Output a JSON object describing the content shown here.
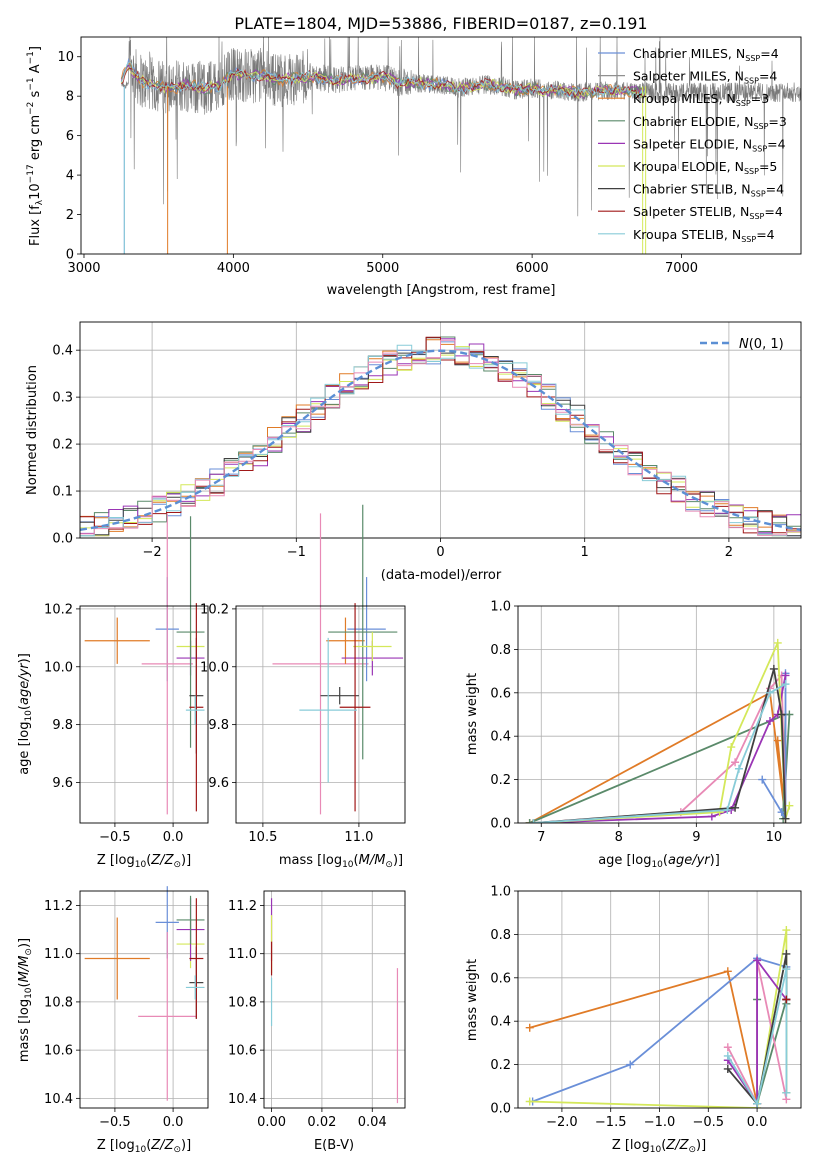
{
  "title": "PLATE=1804, MJD=53886, FIBERID=0187, z=0.191",
  "colors": {
    "cm": "#6a8fd8",
    "sm": "#909090",
    "km": "#e07b27",
    "ce": "#5a8a6a",
    "se": "#9a35b5",
    "ke": "#d4e85a",
    "cs": "#404040",
    "ss": "#a01818",
    "ks": "#88ccd8",
    "sal": "#e88ab6",
    "chab": "#e07b27",
    "gauss": "#5b8fd4"
  },
  "chart_data": [
    {
      "type": "line",
      "title": "PLATE=1804, MJD=53886, FIBERID=0187, z=0.191",
      "xlabel": "wavelength [Angstrom, rest frame]",
      "ylabel": "Flux [fλ10^-17 erg cm^-2 s^-1 A^-1]",
      "xlim": [
        2980,
        7800
      ],
      "ylim": [
        0,
        11
      ],
      "xticks": [
        3000,
        4000,
        5000,
        6000,
        7000
      ],
      "yticks": [
        0,
        2,
        4,
        6,
        8,
        10
      ],
      "legend_position": "right",
      "series": [
        {
          "name": "Chabrier MILES, N_SSP=4",
          "color_key": "cm"
        },
        {
          "name": "Salpeter MILES, N_SSP=4",
          "color_key": "sm"
        },
        {
          "name": "Kroupa MILES, N_SSP=3",
          "color_key": "km"
        },
        {
          "name": "Chabrier ELODIE, N_SSP=3",
          "color_key": "ce"
        },
        {
          "name": "Salpeter ELODIE, N_SSP=4",
          "color_key": "se"
        },
        {
          "name": "Kroupa ELODIE, N_SSP=5",
          "color_key": "ke"
        },
        {
          "name": "Chabrier STELIB, N_SSP=4",
          "color_key": "cs"
        },
        {
          "name": "Salpeter STELIB, N_SSP=4",
          "color_key": "ss"
        },
        {
          "name": "Kroupa STELIB, N_SSP=4",
          "color_key": "ks"
        }
      ],
      "model_continuum": [
        [
          3250,
          8.8
        ],
        [
          3300,
          9.6
        ],
        [
          3350,
          9.0
        ],
        [
          3400,
          8.7
        ],
        [
          3450,
          8.6
        ],
        [
          3500,
          8.5
        ],
        [
          3600,
          8.4
        ],
        [
          3700,
          8.6
        ],
        [
          3800,
          8.4
        ],
        [
          3900,
          8.5
        ],
        [
          4000,
          9.2
        ],
        [
          4100,
          9.0
        ],
        [
          4200,
          9.1
        ],
        [
          4300,
          8.8
        ],
        [
          4400,
          8.9
        ],
        [
          4500,
          9.0
        ],
        [
          4600,
          8.9
        ],
        [
          4700,
          8.8
        ],
        [
          4800,
          8.9
        ],
        [
          4900,
          8.9
        ],
        [
          5000,
          9.0
        ],
        [
          5100,
          8.7
        ],
        [
          5200,
          8.7
        ],
        [
          5300,
          8.6
        ],
        [
          5400,
          8.6
        ],
        [
          5500,
          8.4
        ],
        [
          5600,
          8.5
        ],
        [
          5700,
          8.6
        ],
        [
          5800,
          8.5
        ],
        [
          5900,
          8.3
        ],
        [
          6000,
          8.4
        ],
        [
          6100,
          8.3
        ],
        [
          6200,
          8.3
        ],
        [
          6300,
          8.2
        ],
        [
          6400,
          8.2
        ],
        [
          6500,
          8.3
        ],
        [
          6600,
          8.3
        ],
        [
          6700,
          8.2
        ]
      ],
      "data_extent": [
        3250,
        7800
      ]
    },
    {
      "type": "bar",
      "xlabel": "(data-model)/error",
      "ylabel": "Normed distribution",
      "xlim": [
        -2.5,
        2.5
      ],
      "ylim": [
        0,
        0.46
      ],
      "xticks": [
        -2,
        -1,
        0,
        1,
        2
      ],
      "xtick_labels": [
        "−2",
        "−1",
        "0",
        "1",
        "2"
      ],
      "yticks": [
        0.0,
        0.1,
        0.2,
        0.3,
        0.4
      ],
      "ytick_labels": [
        "0.0",
        "0.1",
        "0.2",
        "0.3",
        "0.4"
      ],
      "grid": true,
      "legend_position": "top-right",
      "legend": "N(0,1)",
      "histogram_bin_width": 0.1
    },
    {
      "type": "scatter",
      "xlabel": "Z [log10(Z/Z⊙)]",
      "ylabel": "age  [log10(age/yr)]",
      "xlim": [
        -0.8,
        0.3
      ],
      "ylim": [
        9.46,
        10.21
      ],
      "xticks": [
        -0.5,
        0.0
      ],
      "xtick_labels": [
        "−0.5",
        "0.0"
      ],
      "yticks": [
        9.6,
        9.8,
        10.0,
        10.2
      ],
      "ytick_labels": [
        "9.6",
        "9.8",
        "10.0",
        "10.2"
      ],
      "points": [
        {
          "k": "km",
          "x": -0.48,
          "xe": 0.28,
          "y": 10.09,
          "ye": 0.08
        },
        {
          "k": "cm",
          "x": -0.05,
          "xe": 0.1,
          "y": 10.13,
          "ye": 0.18
        },
        {
          "k": "sal",
          "x": -0.05,
          "xe": 0.22,
          "y": 10.01,
          "ye": 0.52
        },
        {
          "k": "ke",
          "x": 0.15,
          "xe": 0.12,
          "y": 10.07,
          "ye": 0.05
        },
        {
          "k": "se",
          "x": 0.15,
          "xe": 0.12,
          "y": 10.03,
          "ye": 0.06
        },
        {
          "k": "ce",
          "x": 0.15,
          "xe": 0.12,
          "y": 10.12,
          "ye": 0.4
        },
        {
          "k": "cs",
          "x": 0.2,
          "xe": 0.06,
          "y": 9.9,
          "ye": 0.2
        },
        {
          "k": "ss",
          "x": 0.2,
          "xe": 0.06,
          "y": 9.86,
          "ye": 0.36
        },
        {
          "k": "ks",
          "x": 0.19,
          "xe": 0.08,
          "y": 9.85,
          "ye": 0.05
        }
      ]
    },
    {
      "type": "scatter",
      "xlabel": "mass [log10(M/M⊙)]",
      "xlim": [
        10.36,
        11.24
      ],
      "ylim": [
        9.46,
        10.21
      ],
      "xticks": [
        10.5,
        11.0
      ],
      "xtick_labels": [
        "10.5",
        "11.0"
      ],
      "yticks": [
        9.6,
        9.8,
        10.0,
        10.2
      ],
      "ytick_labels": [
        "9.6",
        "9.8",
        "10.0",
        "10.2"
      ],
      "points": [
        {
          "k": "sal",
          "x": 10.8,
          "xe": 0.25,
          "y": 10.01,
          "ye": 0.52
        },
        {
          "k": "km",
          "x": 10.93,
          "xe": 0.1,
          "y": 10.09,
          "ye": 0.08
        },
        {
          "k": "cm",
          "x": 11.04,
          "xe": 0.1,
          "y": 10.13,
          "ye": 0.18
        },
        {
          "k": "ce",
          "x": 11.02,
          "xe": 0.18,
          "y": 10.12,
          "ye": 0.44
        },
        {
          "k": "se",
          "x": 11.07,
          "xe": 0.16,
          "y": 10.03,
          "ye": 0.06
        },
        {
          "k": "ke",
          "x": 11.07,
          "xe": 0.1,
          "y": 10.07,
          "ye": 0.05
        },
        {
          "k": "cs",
          "x": 10.9,
          "xe": 0.1,
          "y": 9.9,
          "ye": 0.03
        },
        {
          "k": "ss",
          "x": 10.98,
          "xe": 0.08,
          "y": 9.86,
          "ye": 0.36
        },
        {
          "k": "ks",
          "x": 10.84,
          "xe": 0.15,
          "y": 9.85,
          "ye": 0.25
        }
      ]
    },
    {
      "type": "line",
      "xlabel": "age  [log10(age/yr)]",
      "ylabel": "mass weight",
      "xlim": [
        6.7,
        10.35
      ],
      "ylim": [
        0,
        1.0
      ],
      "xticks": [
        7,
        8,
        9,
        10
      ],
      "xtick_labels": [
        "7",
        "8",
        "9",
        "10"
      ],
      "yticks": [
        0.0,
        0.2,
        0.4,
        0.6,
        0.8,
        1.0
      ],
      "ytick_labels": [
        "0.0",
        "0.2",
        "0.4",
        "0.6",
        "0.8",
        "1.0"
      ],
      "series": [
        {
          "k": "km",
          "x": [
            6.85,
            9.95,
            10.15,
            10.05
          ],
          "y": [
            0.0,
            0.6,
            0.02,
            0.38
          ]
        },
        {
          "k": "ce",
          "x": [
            6.85,
            10.15,
            10.12,
            10.2
          ],
          "y": [
            0.0,
            0.5,
            0.02,
            0.5
          ]
        },
        {
          "k": "cm",
          "x": [
            9.85,
            10.1,
            10.15,
            10.15
          ],
          "y": [
            0.2,
            0.05,
            0.02,
            0.69
          ]
        },
        {
          "k": "sal",
          "x": [
            6.9,
            8.8,
            9.5,
            9.95,
            10.1,
            10.15
          ],
          "y": [
            0.0,
            0.05,
            0.28,
            0.62,
            0.68,
            0.02
          ]
        },
        {
          "k": "se",
          "x": [
            6.9,
            9.2,
            9.45,
            9.95,
            10.05,
            10.15
          ],
          "y": [
            0.0,
            0.03,
            0.06,
            0.47,
            0.5,
            0.68
          ]
        },
        {
          "k": "ke",
          "x": [
            6.9,
            9.3,
            9.45,
            10.05,
            10.15,
            10.2
          ],
          "y": [
            0.0,
            0.05,
            0.35,
            0.83,
            0.02,
            0.08
          ]
        },
        {
          "k": "cs",
          "x": [
            6.9,
            9.5,
            10.0,
            10.1,
            10.15
          ],
          "y": [
            0.0,
            0.07,
            0.71,
            0.5,
            0.02
          ]
        },
        {
          "k": "ks",
          "x": [
            6.9,
            9.4,
            9.55,
            9.95,
            10.15
          ],
          "y": [
            0.0,
            0.06,
            0.25,
            0.6,
            0.64
          ]
        }
      ]
    },
    {
      "type": "scatter",
      "xlabel": "Z [log10(Z/Z⊙)]",
      "ylabel": "mass [log10(M/M⊙)]",
      "xlim": [
        -0.8,
        0.3
      ],
      "ylim": [
        10.36,
        11.26
      ],
      "xticks": [
        -0.5,
        0.0
      ],
      "xtick_labels": [
        "−0.5",
        "0.0"
      ],
      "yticks": [
        10.4,
        10.6,
        10.8,
        11.0,
        11.2
      ],
      "ytick_labels": [
        "10.4",
        "10.6",
        "10.8",
        "11.0",
        "11.2"
      ],
      "points": [
        {
          "k": "km",
          "x": -0.48,
          "xe": 0.28,
          "y": 10.98,
          "ye": 0.17
        },
        {
          "k": "cm",
          "x": -0.05,
          "xe": 0.1,
          "y": 11.13,
          "ye": 0.15
        },
        {
          "k": "sal",
          "x": -0.05,
          "xe": 0.25,
          "y": 10.74,
          "ye": 0.35
        },
        {
          "k": "ke",
          "x": 0.15,
          "xe": 0.12,
          "y": 11.04,
          "ye": 0.1
        },
        {
          "k": "se",
          "x": 0.15,
          "xe": 0.12,
          "y": 11.1,
          "ye": 0.13
        },
        {
          "k": "ce",
          "x": 0.15,
          "xe": 0.12,
          "y": 11.14,
          "ye": 0.1
        },
        {
          "k": "cs",
          "x": 0.2,
          "xe": 0.06,
          "y": 10.88,
          "ye": 0.15
        },
        {
          "k": "ss",
          "x": 0.2,
          "xe": 0.06,
          "y": 10.98,
          "ye": 0.25
        },
        {
          "k": "ks",
          "x": 0.19,
          "xe": 0.08,
          "y": 10.86,
          "ye": 0.05
        }
      ]
    },
    {
      "type": "scatter",
      "xlabel": "E(B-V)",
      "xlim": [
        -0.003,
        0.053
      ],
      "ylim": [
        10.36,
        11.26
      ],
      "xticks": [
        0.0,
        0.02,
        0.04
      ],
      "xtick_labels": [
        "0.00",
        "0.02",
        "0.04"
      ],
      "yticks": [
        10.4,
        10.6,
        10.8,
        11.0,
        11.2
      ],
      "ytick_labels": [
        "10.4",
        "10.6",
        "10.8",
        "11.0",
        "11.2"
      ],
      "points": [
        {
          "k": "se",
          "x": 0.0,
          "xe": 0,
          "y": 11.1,
          "ye": 0.13
        },
        {
          "k": "ke",
          "x": 0.0,
          "xe": 0,
          "y": 11.04,
          "ye": 0.12
        },
        {
          "k": "ss",
          "x": 0.0,
          "xe": 0,
          "y": 10.98,
          "ye": 0.07
        },
        {
          "k": "ks",
          "x": 0.0,
          "xe": 0,
          "y": 10.8,
          "ye": 0.1
        },
        {
          "k": "sal",
          "x": 0.05,
          "xe": 0,
          "y": 10.66,
          "ye": 0.28
        }
      ]
    },
    {
      "type": "line",
      "xlabel": "Z [log10(Z/Z⊙)]",
      "ylabel": "mass weight",
      "xlim": [
        -2.45,
        0.45
      ],
      "ylim": [
        0,
        1.0
      ],
      "xticks": [
        -2.0,
        -1.5,
        -1.0,
        -0.5,
        0.0
      ],
      "xtick_labels": [
        "−2.0",
        "−1.5",
        "−1.0",
        "−0.5",
        "0.0"
      ],
      "yticks": [
        0.0,
        0.2,
        0.4,
        0.6,
        0.8,
        1.0
      ],
      "ytick_labels": [
        "0.0",
        "0.2",
        "0.4",
        "0.6",
        "0.8",
        "1.0"
      ],
      "series": [
        {
          "k": "km",
          "x": [
            -2.33,
            -0.3,
            0.0
          ],
          "y": [
            0.37,
            0.63,
            0.02
          ]
        },
        {
          "k": "cm",
          "x": [
            -2.3,
            -1.3,
            0.0,
            0.3,
            0.3
          ],
          "y": [
            0.03,
            0.2,
            0.69,
            0.65,
            0.07
          ]
        },
        {
          "k": "ke",
          "x": [
            -2.33,
            0.0,
            0.3,
            0.3
          ],
          "y": [
            0.03,
            0.0,
            0.82,
            0.07
          ]
        },
        {
          "k": "ce",
          "x": [
            0.0,
            0.0,
            0.3,
            0.3
          ],
          "y": [
            0.5,
            0.02,
            0.5,
            0.48
          ]
        },
        {
          "k": "sal",
          "x": [
            -0.3,
            0.0,
            0.0,
            0.3
          ],
          "y": [
            0.28,
            0.02,
            0.68,
            0.04
          ]
        },
        {
          "k": "se",
          "x": [
            -0.3,
            0.0,
            0.0,
            0.3
          ],
          "y": [
            0.22,
            0.02,
            0.68,
            0.5
          ]
        },
        {
          "k": "cs",
          "x": [
            -0.3,
            0.0,
            0.3,
            0.3
          ],
          "y": [
            0.18,
            0.02,
            0.71,
            0.5
          ]
        },
        {
          "k": "ks",
          "x": [
            -0.3,
            0.0,
            0.3,
            0.3
          ],
          "y": [
            0.24,
            0.02,
            0.64,
            0.07
          ]
        },
        {
          "k": "ss",
          "x": [
            0.3
          ],
          "y": [
            0.5
          ]
        }
      ]
    }
  ]
}
